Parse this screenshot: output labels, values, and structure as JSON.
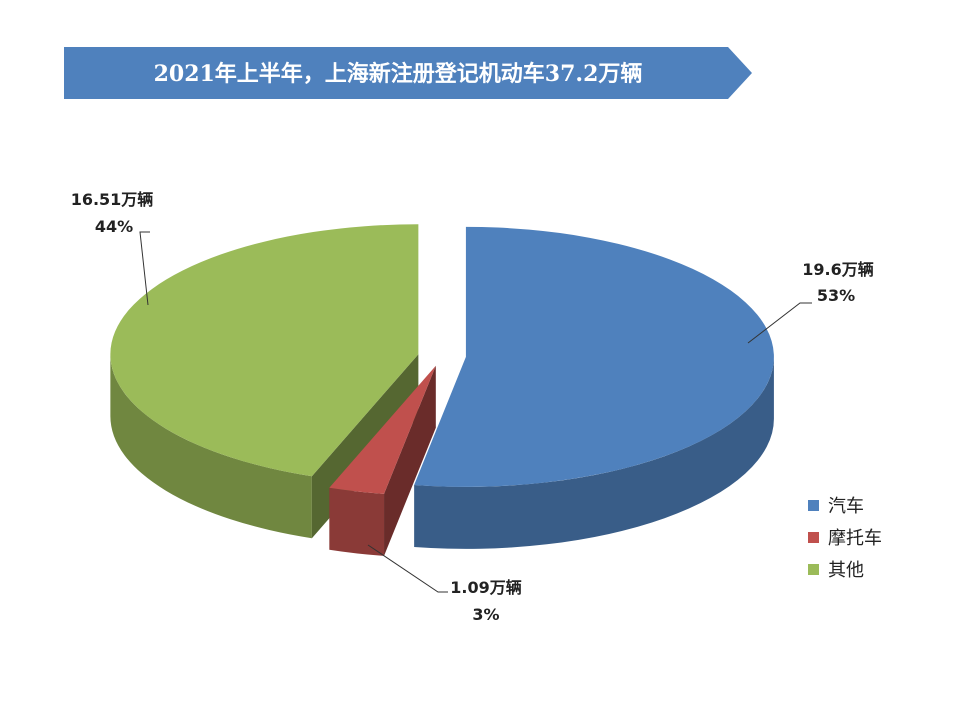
{
  "chart_data": {
    "type": "pie",
    "title": "2021年上半年，上海新注册登记机动车37.2万辆",
    "categories": [
      "汽车",
      "摩托车",
      "其他"
    ],
    "values": [
      19.6,
      1.09,
      16.51
    ],
    "value_labels": [
      "19.6万辆",
      "1.09万辆",
      "16.51万辆"
    ],
    "percent_labels": [
      "53%",
      "3%",
      "44%"
    ],
    "colors": [
      "#4F81BD",
      "#C0504D",
      "#9BBB59"
    ],
    "style": "3d-exploded",
    "legend": "right"
  }
}
